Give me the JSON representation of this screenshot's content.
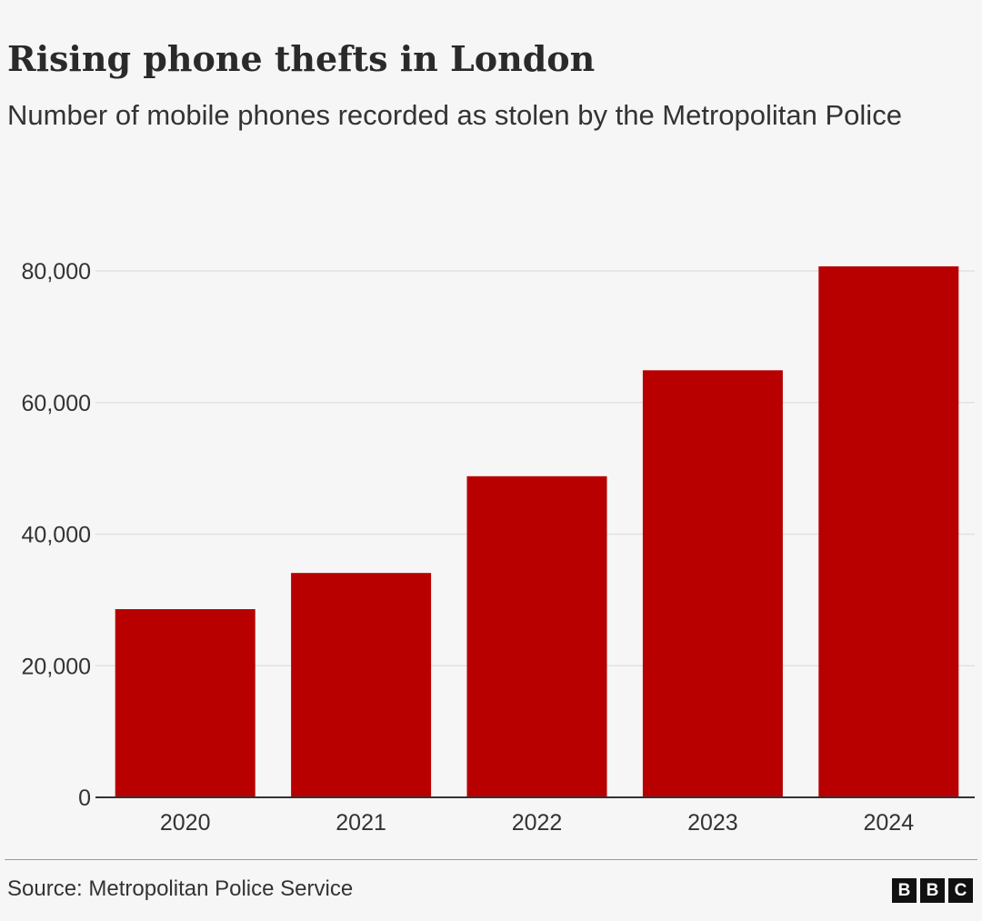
{
  "chart_data": {
    "type": "bar",
    "title": "Rising phone thefts in London",
    "subtitle": "Number of mobile phones recorded as stolen by the Metropolitan Police",
    "categories": [
      "2020",
      "2021",
      "2022",
      "2023",
      "2024"
    ],
    "values": [
      28600,
      34100,
      48800,
      64900,
      80700
    ],
    "xlabel": "",
    "ylabel": "",
    "ylim": [
      0,
      80000
    ],
    "yticks": [
      0,
      20000,
      40000,
      60000,
      80000
    ],
    "ytick_labels": [
      "0",
      "20,000",
      "40,000",
      "60,000",
      "80,000"
    ],
    "grid": true,
    "bar_color": "#b80000"
  },
  "footer": {
    "source": "Source: Metropolitan Police Service",
    "logo": [
      "B",
      "B",
      "C"
    ]
  }
}
